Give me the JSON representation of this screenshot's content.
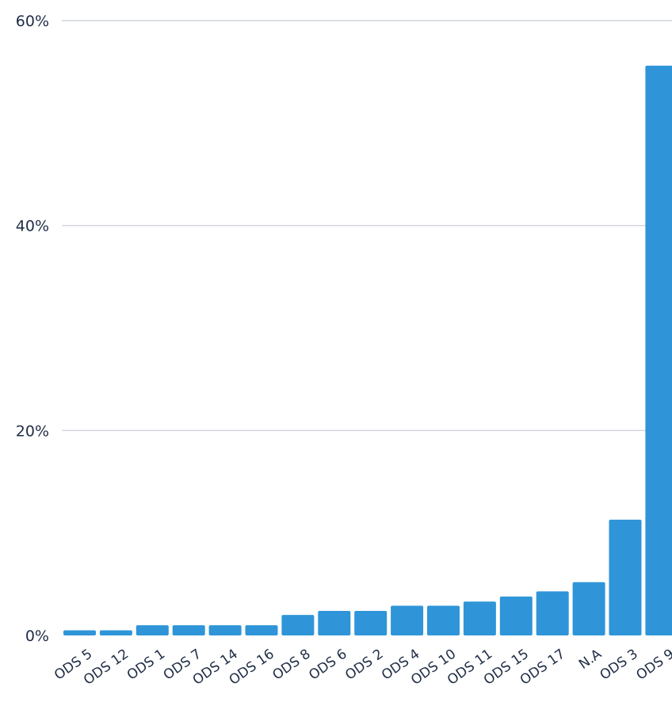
{
  "chart_data": {
    "type": "bar",
    "categories": [
      "ODS 5",
      "ODS 12",
      "ODS 1",
      "ODS 7",
      "ODS 14",
      "ODS 16",
      "ODS 8",
      "ODS 6",
      "ODS 2",
      "ODS 4",
      "ODS 10",
      "ODS 11",
      "ODS 15",
      "ODS 17",
      "N.A",
      "ODS 3",
      "ODS 9"
    ],
    "values": [
      0.5,
      0.5,
      1.0,
      1.0,
      1.0,
      1.0,
      2.0,
      2.4,
      2.4,
      2.9,
      2.9,
      3.3,
      3.8,
      4.3,
      5.2,
      11.3,
      55.6
    ],
    "ylim": [
      0,
      60
    ],
    "yticks": [
      0,
      20,
      40,
      60
    ],
    "ytick_labels": [
      "0%",
      "20%",
      "40%",
      "60%"
    ],
    "grid": true,
    "bar_color": "#2f95d8",
    "title": "",
    "xlabel": "",
    "ylabel": ""
  }
}
